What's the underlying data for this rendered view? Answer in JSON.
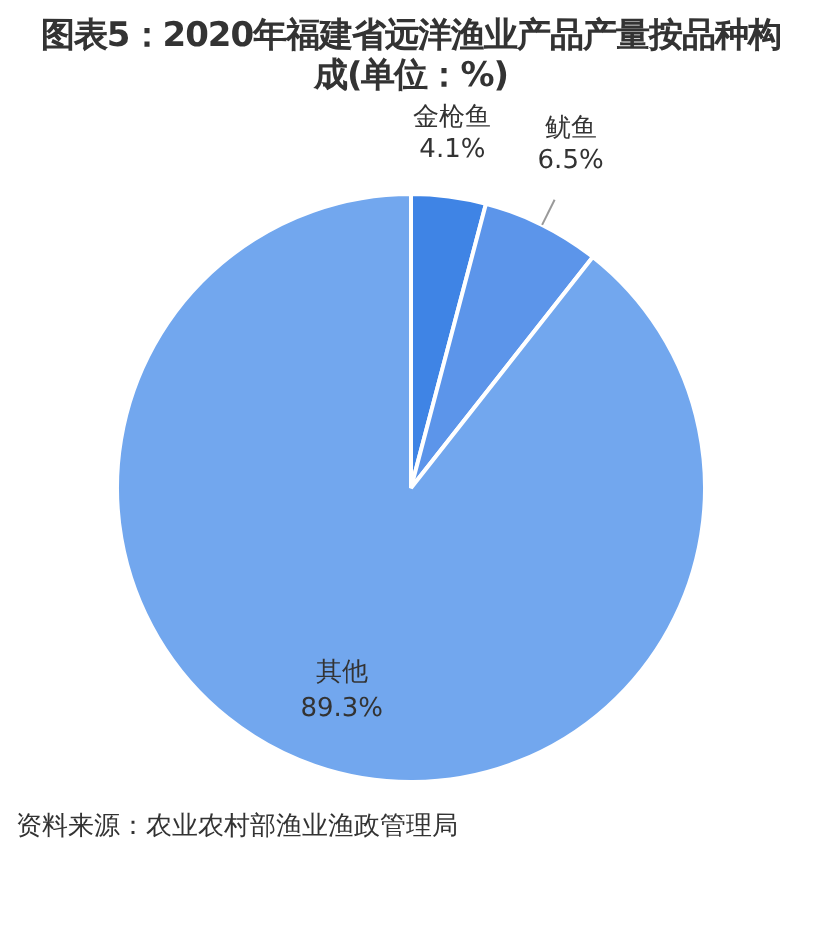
{
  "chart_data": {
    "type": "pie",
    "title": "图表5：2020年福建省远洋渔业产品产量按品种构成(单位：%)",
    "categories": [
      "金枪鱼",
      "鱿鱼",
      "其他"
    ],
    "values": [
      4.1,
      6.5,
      89.3
    ],
    "colors": [
      "#3f84e5",
      "#5c95ea",
      "#72a7ee"
    ],
    "value_labels": [
      "4.1%",
      "6.5%",
      "89.3%"
    ],
    "legend": false,
    "annotations": [
      "资料来源：农业农村部渔业渔政管理局"
    ]
  }
}
